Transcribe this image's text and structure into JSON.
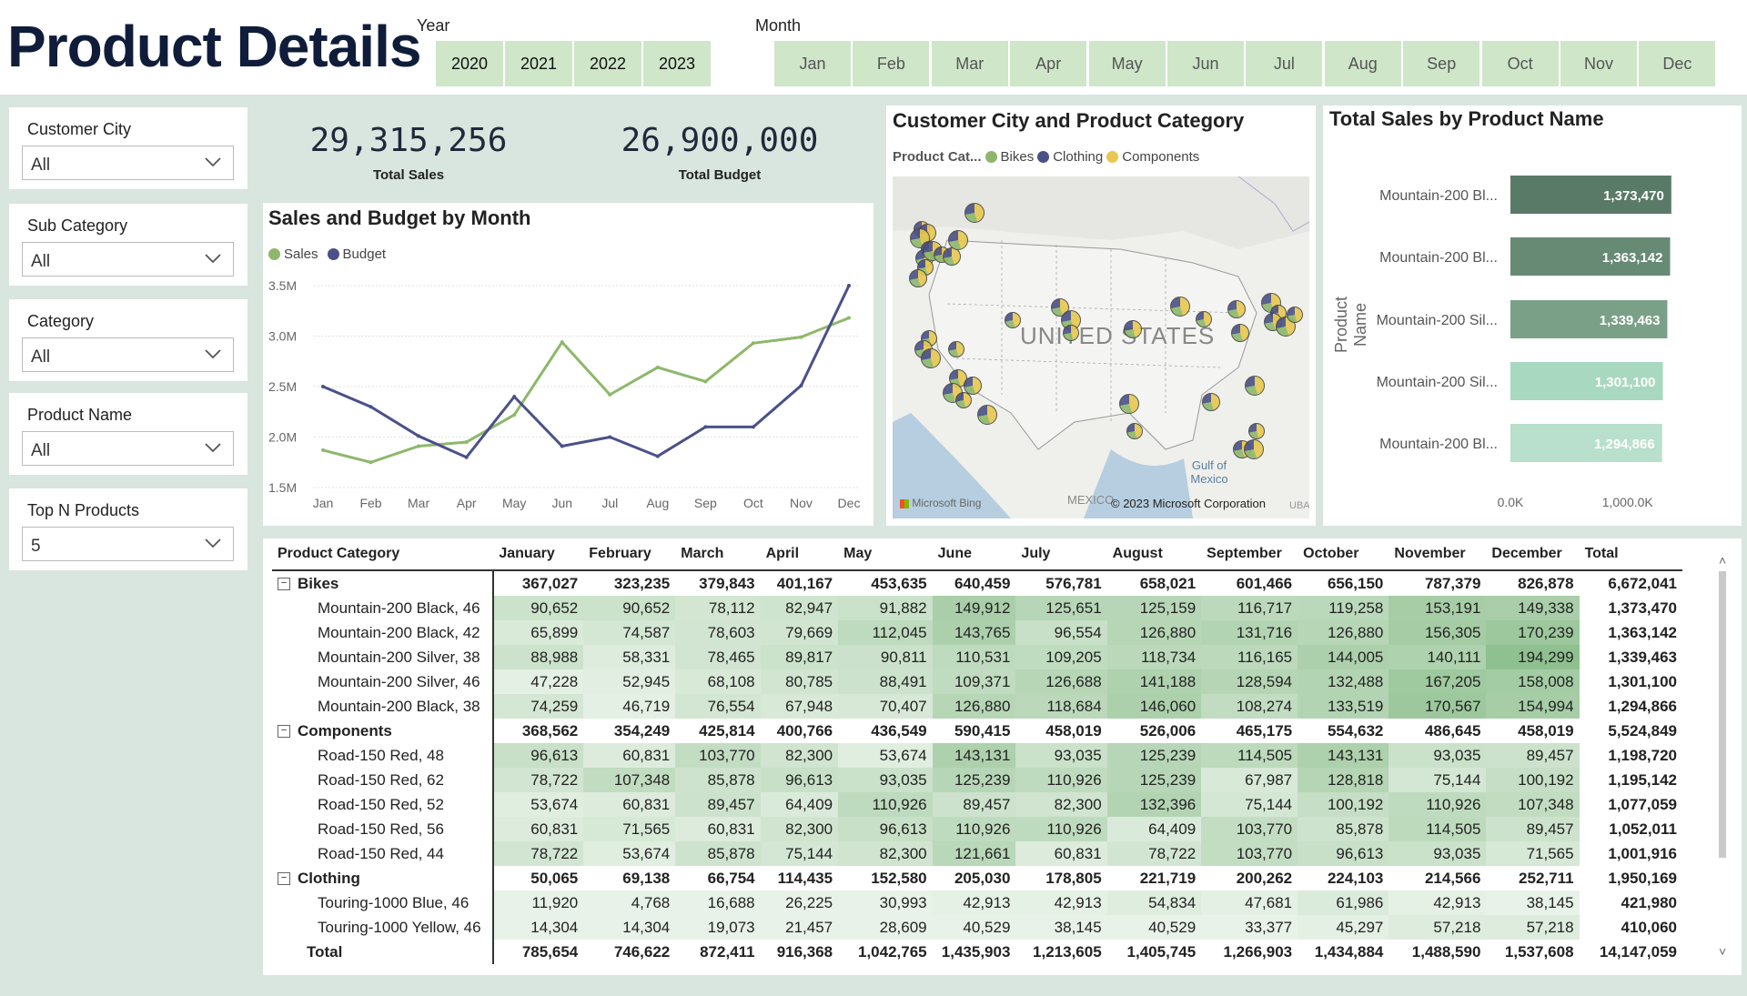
{
  "page": {
    "title": "Product Details"
  },
  "year_slicer": {
    "label": "Year",
    "options": [
      "2020",
      "2021",
      "2022",
      "2023"
    ]
  },
  "month_slicer": {
    "label": "Month",
    "options": [
      "Jan",
      "Feb",
      "Mar",
      "Apr",
      "May",
      "Jun",
      "Jul",
      "Aug",
      "Sep",
      "Oct",
      "Nov",
      "Dec"
    ]
  },
  "filters": [
    {
      "label": "Customer City",
      "value": "All"
    },
    {
      "label": "Sub Category",
      "value": "All"
    },
    {
      "label": "Category",
      "value": "All"
    },
    {
      "label": "Product Name",
      "value": "All"
    },
    {
      "label": "Top N Products",
      "value": "5"
    }
  ],
  "kpis": [
    {
      "value": "29,315,256",
      "label": "Total Sales"
    },
    {
      "value": "26,900,000",
      "label": "Total Budget"
    }
  ],
  "colors": {
    "sales": "#8db86b",
    "budget": "#4a5088",
    "bikes": "#8db86b",
    "clothing": "#4a5088",
    "components": "#e8c84e",
    "bar_dark": "#5a7a68",
    "bar_light": "#b8e0cc",
    "background": "#d9e5df",
    "slicer_bg": "#cfe6c9"
  },
  "chart_data": [
    {
      "type": "line",
      "title": "Sales and Budget by Month",
      "x": [
        "Jan",
        "Feb",
        "Mar",
        "Apr",
        "May",
        "Jun",
        "Jul",
        "Aug",
        "Sep",
        "Oct",
        "Nov",
        "Dec"
      ],
      "series": [
        {
          "name": "Sales",
          "values": [
            1.87,
            1.75,
            1.91,
            1.95,
            2.22,
            2.94,
            2.42,
            2.69,
            2.55,
            2.93,
            2.99,
            3.18
          ]
        },
        {
          "name": "Budget",
          "values": [
            2.5,
            2.3,
            2.01,
            1.8,
            2.4,
            1.91,
            2.0,
            1.81,
            2.1,
            2.1,
            2.51,
            3.5
          ]
        }
      ],
      "y_ticks": [
        "1.5M",
        "2.0M",
        "2.5M",
        "3.0M",
        "3.5M"
      ],
      "ylim": [
        1.5,
        3.5
      ],
      "y_unit": "M",
      "legend_position": "top-left"
    },
    {
      "type": "map",
      "title": "Customer City and Product Category",
      "legend_title": "Product Cat...",
      "categories": [
        "Bikes",
        "Clothing",
        "Components"
      ],
      "map_labels": {
        "country": "UNITED STATES",
        "gulf": "Gulf of Mexico",
        "mexico": "MEXICO",
        "cuba": "UBA",
        "credit": "© 2023 Microsoft Corporation",
        "provider": "Microsoft Bing"
      }
    },
    {
      "type": "bar",
      "title": "Total Sales by Product Name",
      "orientation": "horizontal",
      "ylabel": "Product Name",
      "categories": [
        "Mountain-200 Bl...",
        "Mountain-200 Bl...",
        "Mountain-200 Sil...",
        "Mountain-200 Sil...",
        "Mountain-200 Bl..."
      ],
      "values": [
        1373470,
        1363142,
        1339463,
        1301100,
        1294866
      ],
      "value_labels": [
        "1,373,470",
        "1,363,142",
        "1,339,463",
        "1,301,100",
        "1,294,866"
      ],
      "x_ticks": [
        "0.0K",
        "1,000.0K"
      ],
      "xlim": [
        0,
        1600000
      ]
    },
    {
      "type": "table",
      "headers": [
        "Product Category",
        "January",
        "February",
        "March",
        "April",
        "May",
        "June",
        "July",
        "August",
        "September",
        "October",
        "November",
        "December",
        "Total"
      ],
      "rows": [
        {
          "kind": "group",
          "label": "Bikes",
          "values": [
            "367,027",
            "323,235",
            "379,843",
            "401,167",
            "453,635",
            "640,459",
            "576,781",
            "658,021",
            "601,466",
            "656,150",
            "787,379",
            "826,878",
            "6,672,041"
          ]
        },
        {
          "kind": "item",
          "label": "Mountain-200 Black, 46",
          "values": [
            "90,652",
            "90,652",
            "78,112",
            "82,947",
            "91,882",
            "149,912",
            "125,651",
            "125,159",
            "116,717",
            "119,258",
            "153,191",
            "149,338",
            "1,373,470"
          ]
        },
        {
          "kind": "item",
          "label": "Mountain-200 Black, 42",
          "values": [
            "65,899",
            "74,587",
            "78,603",
            "79,669",
            "112,045",
            "143,765",
            "96,554",
            "126,880",
            "131,716",
            "126,880",
            "156,305",
            "170,239",
            "1,363,142"
          ]
        },
        {
          "kind": "item",
          "label": "Mountain-200 Silver, 38",
          "values": [
            "88,988",
            "58,331",
            "78,465",
            "89,817",
            "90,811",
            "110,531",
            "109,205",
            "118,734",
            "116,165",
            "144,005",
            "140,111",
            "194,299",
            "1,339,463"
          ]
        },
        {
          "kind": "item",
          "label": "Mountain-200 Silver, 46",
          "values": [
            "47,228",
            "52,945",
            "68,108",
            "80,785",
            "88,491",
            "109,371",
            "126,688",
            "141,188",
            "128,594",
            "132,488",
            "167,205",
            "158,008",
            "1,301,100"
          ]
        },
        {
          "kind": "item",
          "label": "Mountain-200 Black, 38",
          "values": [
            "74,259",
            "46,719",
            "76,554",
            "67,948",
            "70,407",
            "126,880",
            "118,684",
            "146,060",
            "108,274",
            "133,519",
            "170,567",
            "154,994",
            "1,294,866"
          ]
        },
        {
          "kind": "group",
          "label": "Components",
          "values": [
            "368,562",
            "354,249",
            "425,814",
            "400,766",
            "436,549",
            "590,415",
            "458,019",
            "526,006",
            "465,175",
            "554,632",
            "486,645",
            "458,019",
            "5,524,849"
          ]
        },
        {
          "kind": "item",
          "label": "Road-150 Red, 48",
          "values": [
            "96,613",
            "60,831",
            "103,770",
            "82,300",
            "53,674",
            "143,131",
            "93,035",
            "125,239",
            "114,505",
            "143,131",
            "93,035",
            "89,457",
            "1,198,720"
          ]
        },
        {
          "kind": "item",
          "label": "Road-150 Red, 62",
          "values": [
            "78,722",
            "107,348",
            "85,878",
            "96,613",
            "93,035",
            "125,239",
            "110,926",
            "125,239",
            "67,987",
            "128,818",
            "75,144",
            "100,192",
            "1,195,142"
          ]
        },
        {
          "kind": "item",
          "label": "Road-150 Red, 52",
          "values": [
            "53,674",
            "60,831",
            "89,457",
            "64,409",
            "110,926",
            "89,457",
            "82,300",
            "132,396",
            "75,144",
            "100,192",
            "110,926",
            "107,348",
            "1,077,059"
          ]
        },
        {
          "kind": "item",
          "label": "Road-150 Red, 56",
          "values": [
            "60,831",
            "71,565",
            "60,831",
            "82,300",
            "96,613",
            "110,926",
            "110,926",
            "64,409",
            "103,770",
            "85,878",
            "114,505",
            "89,457",
            "1,052,011"
          ]
        },
        {
          "kind": "item",
          "label": "Road-150 Red, 44",
          "values": [
            "78,722",
            "53,674",
            "85,878",
            "75,144",
            "82,300",
            "121,661",
            "60,831",
            "78,722",
            "103,770",
            "96,613",
            "93,035",
            "71,565",
            "1,001,916"
          ]
        },
        {
          "kind": "group",
          "label": "Clothing",
          "values": [
            "50,065",
            "69,138",
            "66,754",
            "114,435",
            "152,580",
            "205,030",
            "178,805",
            "221,719",
            "200,262",
            "224,103",
            "214,566",
            "252,711",
            "1,950,169"
          ]
        },
        {
          "kind": "item",
          "label": "Touring-1000 Blue, 46",
          "values": [
            "11,920",
            "4,768",
            "16,688",
            "26,225",
            "30,993",
            "42,913",
            "42,913",
            "54,834",
            "47,681",
            "61,986",
            "42,913",
            "38,145",
            "421,980"
          ]
        },
        {
          "kind": "item",
          "label": "Touring-1000 Yellow, 46",
          "values": [
            "14,304",
            "14,304",
            "19,073",
            "21,457",
            "28,609",
            "40,529",
            "38,145",
            "40,529",
            "33,377",
            "45,297",
            "57,218",
            "57,218",
            "410,060"
          ]
        },
        {
          "kind": "total",
          "label": "Total",
          "values": [
            "785,654",
            "746,622",
            "872,411",
            "916,368",
            "1,042,765",
            "1,435,903",
            "1,213,605",
            "1,405,745",
            "1,266,903",
            "1,434,884",
            "1,488,590",
            "1,537,608",
            "14,147,059"
          ]
        }
      ]
    }
  ]
}
